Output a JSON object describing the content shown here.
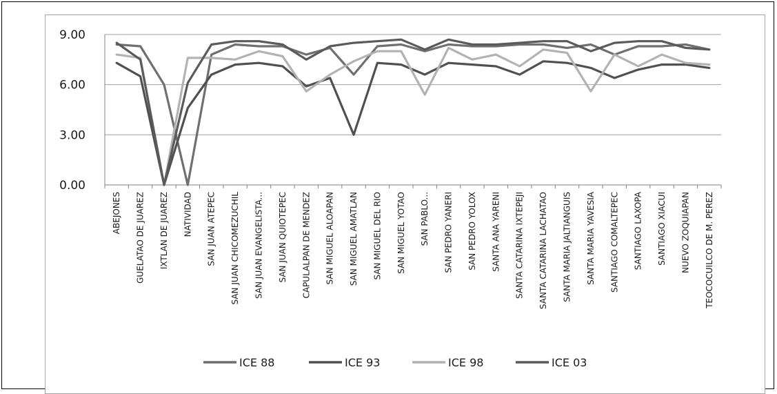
{
  "chart_data": {
    "type": "line",
    "title": "",
    "xlabel": "",
    "ylabel": "",
    "ylim": [
      0,
      9
    ],
    "yticks": [
      "0.00",
      "3.00",
      "6.00",
      "9.00"
    ],
    "grid": true,
    "legend_position": "bottom",
    "categories": [
      "ABEJONES",
      "GUELATAO DE JUAREZ",
      "IXTLAN DE JUAREZ",
      "NATIVIDAD",
      "SAN JUAN ATEPEC",
      "SAN JUAN CHICOMEZUCHIL",
      "SAN JUAN EVANGELISTA...",
      "SAN JUAN QUIOTEPEC",
      "CAPULALPAN DE MENDEZ",
      "SAN MIGUEL ALOAPAN",
      "SAN MIGUEL AMATLAN",
      "SAN MIGUEL DEL RIO",
      "SAN MIGUEL YOTAO",
      "SAN PABLO...",
      "SAN PEDRO YANERI",
      "SAN PEDRO YOLOX",
      "SANTA ANA YARENI",
      "SANTA CATARINA IXTEPEJI",
      "SANTA CATARINA LACHATAO",
      "SANTA MARIA JALTIANGUIS",
      "SANTA MARIA YAVESIA",
      "SANTIAGO COMALTEPEC",
      "SANTIAGO LAXOPA",
      "SANTIAGO XIACUI",
      "NUEVO ZOQUIAPAN",
      "TEOCOCUILCO DE M. PEREZ"
    ],
    "series": [
      {
        "name": "ICE 88",
        "color": "#6f6f6f",
        "values": [
          8.4,
          8.3,
          6.0,
          0.0,
          7.8,
          8.4,
          8.3,
          8.3,
          7.8,
          8.2,
          6.6,
          8.3,
          8.4,
          8.0,
          8.4,
          8.3,
          8.3,
          8.4,
          8.4,
          8.2,
          8.4,
          7.8,
          8.3,
          8.3,
          8.4,
          8.1
        ]
      },
      {
        "name": "ICE 93",
        "color": "#505050",
        "values": [
          7.3,
          6.5,
          0.0,
          4.6,
          6.6,
          7.2,
          7.3,
          7.1,
          5.9,
          6.4,
          3.0,
          7.3,
          7.2,
          6.6,
          7.3,
          7.2,
          7.1,
          6.6,
          7.4,
          7.3,
          7.0,
          6.4,
          6.9,
          7.2,
          7.2,
          7.0
        ]
      },
      {
        "name": "ICE 98",
        "color": "#b2b2b2",
        "values": [
          7.8,
          7.6,
          0.0,
          7.6,
          7.6,
          7.5,
          8.0,
          7.7,
          5.6,
          6.6,
          7.4,
          8.0,
          8.0,
          5.4,
          8.2,
          7.5,
          7.8,
          7.1,
          8.1,
          7.9,
          5.6,
          7.8,
          7.1,
          7.8,
          7.3,
          7.2
        ]
      },
      {
        "name": "ICE 03",
        "color": "#5a5a5a",
        "values": [
          8.5,
          7.5,
          0.0,
          6.1,
          8.4,
          8.6,
          8.6,
          8.4,
          7.5,
          8.3,
          8.5,
          8.6,
          8.7,
          8.1,
          8.7,
          8.4,
          8.4,
          8.5,
          8.6,
          8.6,
          8.0,
          8.5,
          8.6,
          8.6,
          8.2,
          8.1
        ]
      }
    ]
  }
}
